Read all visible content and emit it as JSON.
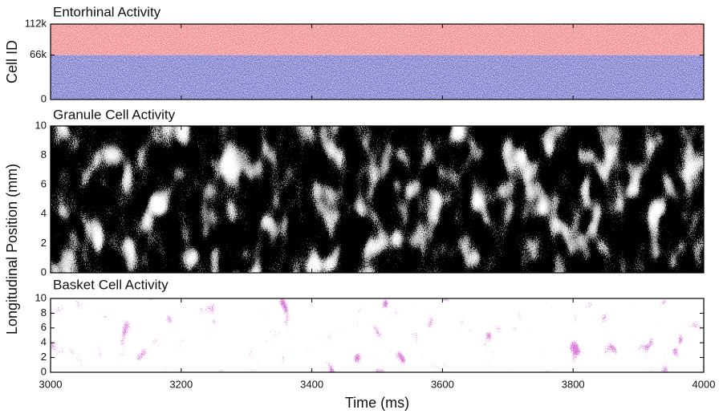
{
  "chart_data": [
    {
      "type": "raster",
      "title": "Entorhinal Activity",
      "ylabel": "Cell ID",
      "ylim": [
        0,
        112000
      ],
      "yticks": [
        0,
        {
          "value": 66000,
          "label": "66k"
        },
        {
          "value": 112000,
          "label": "112k"
        }
      ],
      "bands": [
        {
          "range": [
            0,
            66000
          ],
          "color": "#5c5cc4"
        },
        {
          "range": [
            66000,
            112000
          ],
          "color": "#f07272"
        }
      ]
    },
    {
      "type": "density",
      "title": "Granule Cell Activity",
      "ylabel": "Longitudinal Position (mm)",
      "ylim": [
        0,
        10
      ],
      "yticks": [
        0,
        2,
        4,
        6,
        8,
        10
      ],
      "color": "#000000"
    },
    {
      "type": "blobs",
      "title": "Basket Cell Activity",
      "xlabel": "Time (ms)",
      "ylim": [
        0,
        10
      ],
      "yticks": [
        0,
        2,
        4,
        6,
        8,
        10
      ],
      "color": "#b030b0",
      "xlim": [
        3000,
        4000
      ],
      "xticks": [
        3000,
        3200,
        3400,
        3600,
        3800,
        4000
      ]
    }
  ]
}
